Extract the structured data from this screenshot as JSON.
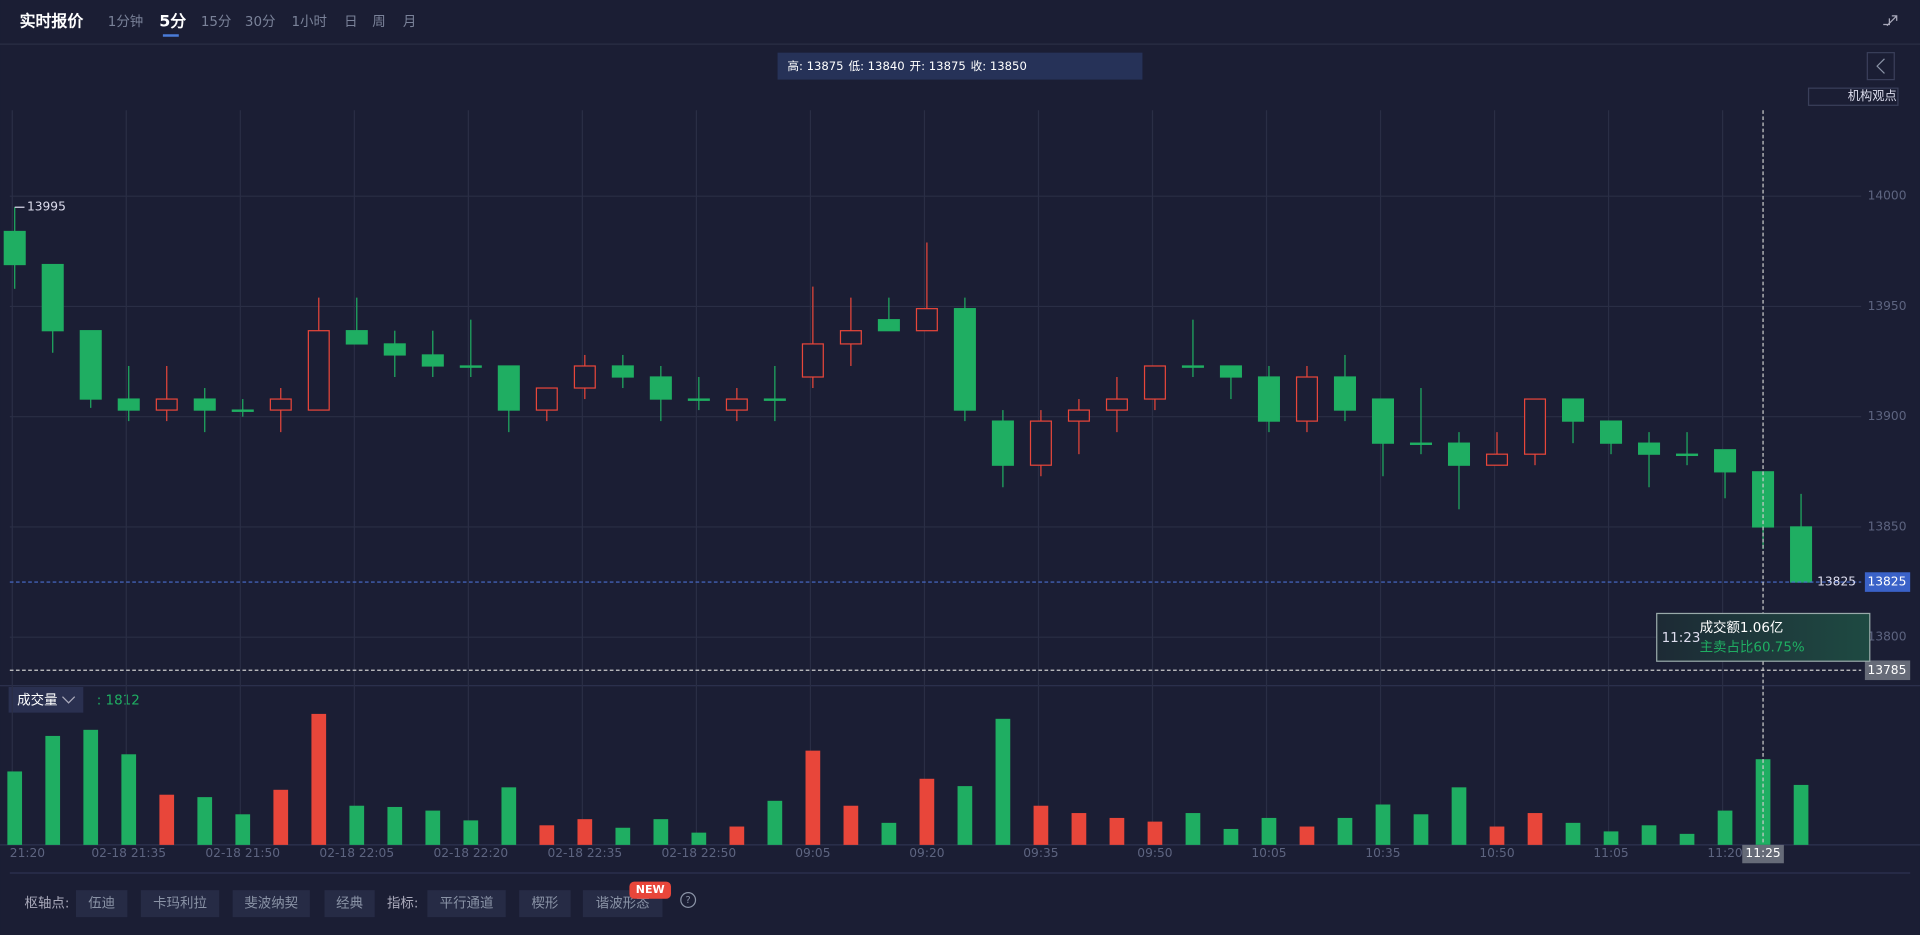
{
  "tabs": {
    "title": "实时报价",
    "periods": [
      "1分钟",
      "5分",
      "15分",
      "30分",
      "1小时",
      "日",
      "周",
      "月"
    ],
    "active": 1
  },
  "ohlc_info": [
    {
      "label": "高:",
      "value": 13875
    },
    {
      "label": "低:",
      "value": 13840
    },
    {
      "label": "开:",
      "value": 13875
    },
    {
      "label": "收:",
      "value": 13850
    }
  ],
  "side_button": "机构观点",
  "chart_data": {
    "type": "candlestick",
    "categories": [
      "21:20",
      null,
      null,
      "02-18 21:35",
      null,
      null,
      "02-18 21:50",
      null,
      null,
      "02-18 22:05",
      null,
      null,
      "02-18 22:20",
      null,
      null,
      "02-18 22:35",
      null,
      null,
      "02-18 22:50",
      null,
      null,
      "09:05",
      null,
      null,
      "09:20",
      null,
      null,
      "09:35",
      null,
      null,
      "09:50",
      null,
      null,
      "10:05",
      null,
      null,
      "10:35",
      null,
      null,
      "10:50",
      null,
      null,
      "11:05",
      null,
      null,
      "11:20",
      "11:25",
      null
    ],
    "open": [
      13984,
      13969,
      13939,
      13908,
      13903,
      13908,
      13903,
      13903,
      13903,
      13939,
      13933,
      13928,
      13923,
      13923,
      13903,
      13913,
      13923,
      13918,
      13908,
      13903,
      13908,
      13918,
      13933,
      13944,
      13939,
      13949,
      13898,
      13878,
      13898,
      13903,
      13908,
      13923,
      13923,
      13918,
      13898,
      13918,
      13908,
      13888,
      13888,
      13878,
      13883,
      13908,
      13898,
      13888,
      13883,
      13885,
      13875,
      13850
    ],
    "high": [
      13995,
      13969,
      13939,
      13923,
      13923,
      13913,
      13908,
      13913,
      13954,
      13954,
      13939,
      13939,
      13944,
      13923,
      13913,
      13928,
      13928,
      13923,
      13918,
      13913,
      13923,
      13959,
      13954,
      13954,
      13979,
      13954,
      13903,
      13903,
      13908,
      13918,
      13923,
      13944,
      13923,
      13923,
      13923,
      13928,
      13908,
      13913,
      13893,
      13893,
      13908,
      13908,
      13898,
      13893,
      13893,
      13885,
      13875,
      13865
    ],
    "low": [
      13958,
      13929,
      13904,
      13898,
      13898,
      13893,
      13900,
      13893,
      13903,
      13933,
      13918,
      13918,
      13918,
      13893,
      13898,
      13908,
      13913,
      13898,
      13903,
      13898,
      13898,
      13913,
      13923,
      13939,
      13939,
      13898,
      13868,
      13873,
      13883,
      13893,
      13903,
      13918,
      13908,
      13893,
      13893,
      13898,
      13873,
      13883,
      13858,
      13878,
      13878,
      13888,
      13883,
      13868,
      13878,
      13863,
      13840,
      13825
    ],
    "close": [
      13969,
      13939,
      13908,
      13903,
      13908,
      13903,
      13903,
      13908,
      13939,
      13933,
      13928,
      13923,
      13923,
      13903,
      13913,
      13923,
      13918,
      13908,
      13908,
      13908,
      13908,
      13933,
      13939,
      13939,
      13949,
      13903,
      13878,
      13898,
      13903,
      13908,
      13923,
      13923,
      13918,
      13898,
      13918,
      13903,
      13888,
      13888,
      13878,
      13883,
      13908,
      13898,
      13888,
      13883,
      13883,
      13875,
      13850,
      13825
    ],
    "volume": [
      1553,
      2304,
      2433,
      1916,
      1061,
      1010,
      647,
      1165,
      2770,
      828,
      802,
      725,
      518,
      1217,
      414,
      544,
      362,
      544,
      259,
      388,
      932,
      1993,
      828,
      466,
      1398,
      1243,
      2666,
      828,
      673,
      570,
      492,
      673,
      337,
      570,
      388,
      570,
      854,
      647,
      1217,
      388,
      673,
      466,
      285,
      414,
      233,
      725,
      1812,
      1268
    ],
    "up_color": "#e8463a",
    "down_color": "#1fae62",
    "ylim": [
      13778,
      14039
    ],
    "yticks": [
      13800,
      13850,
      13900,
      13950,
      14000
    ],
    "volume_ylim": [
      0,
      2978
    ],
    "grid": true,
    "volume_label": "成交量",
    "volume_value_label": ": 1812",
    "crosshair": {
      "index": 46,
      "price": 13785,
      "time": "11:23",
      "turnover": "成交额1.06亿",
      "sell_ratio": "主卖占比60.75%"
    }
  },
  "toolbar": {
    "pivot_label": "枢轴点:",
    "pivots": [
      "伍迪",
      "卡玛利拉",
      "斐波纳契",
      "经典"
    ],
    "indicator_label": "指标:",
    "indicators": [
      "平行通道",
      "楔形",
      "谐波形态"
    ],
    "badge": "NEW",
    "help": "?"
  }
}
